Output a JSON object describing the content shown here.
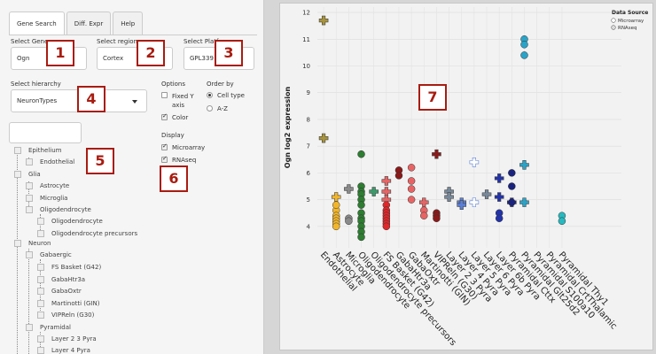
{
  "tabs": [
    "Gene Search",
    "Diff. Expr",
    "Help"
  ],
  "select_gene": {
    "label": "Select Gene",
    "value": "Ogn"
  },
  "select_region": {
    "label": "Select region",
    "value": "Cortex"
  },
  "select_platform": {
    "label": "Select Platform",
    "value": "GPL339"
  },
  "select_hierarchy": {
    "label": "Select hierarchy",
    "value": "NeuronTypes"
  },
  "options": {
    "heading": "Options",
    "fixed_y": "Fixed Y axis",
    "color": "Color"
  },
  "order_by": {
    "heading": "Order by",
    "cell_type": "Cell type",
    "az": "A-Z"
  },
  "display": {
    "heading": "Display",
    "microarray": "Microarray",
    "rnaseq": "RNAseq"
  },
  "tree": {
    "epithelium": "Epithelium",
    "endothelial": "Endothelial",
    "glia": "Glia",
    "astrocyte": "Astrocyte",
    "microglia": "Microglia",
    "oligodendrocyte_group": "Oligodendrocyte",
    "oligodendrocyte": "Oligodendrocyte",
    "oligo_precursors": "Oligodendrocyte precursors",
    "neuron": "Neuron",
    "gabaergic": "Gabaergic",
    "fs_basket": "FS Basket (G42)",
    "gabahtr3a": "GabaHtr3a",
    "gabaoxtr": "GabaOxtr",
    "martinotti": "Martinotti (GIN)",
    "viprein": "VIPReln (G30)",
    "pyramidal": "Pyramidal",
    "layer23": "Layer 2 3 Pyra",
    "layer4": "Layer 4 Pyra"
  },
  "badges": [
    "1",
    "2",
    "3",
    "4",
    "5",
    "6",
    "7"
  ],
  "legend": {
    "title": "Data Source",
    "microarray": "Microarray",
    "rnaseq": "RNAseq"
  },
  "colors": {
    "endothelial": "#a8943c",
    "astrocyte": "#f2b52a",
    "microglia": "#8a8a8a",
    "oligo": "#2e7d32",
    "opc": "#3a9a6a",
    "gaba": "#e0272a",
    "htr3a": "#8a1a1a",
    "pink": "#e86464",
    "dark_red": "#8b1a1a",
    "gray_blue": "#778899",
    "blue": "#5b7fd6",
    "dark_blue": "#2233aa",
    "navy": "#1a237e",
    "cyan": "#29a3c8",
    "teal": "#26b9c0"
  },
  "chart_data": {
    "type": "scatter",
    "ylabel": "Ogn log2 expression",
    "yticks": [
      4,
      5,
      6,
      7,
      8,
      9,
      10,
      11,
      12
    ],
    "ylim": [
      3.2,
      12.2
    ],
    "categories": [
      "Endothelial",
      "Astrocyte",
      "Microglia",
      "Oligodendrocyte",
      "Oligodendrocyte precursors",
      "FS Basket (G42)",
      "GabaHtr3a",
      "GabaOxtr",
      "Martinotti (GIN)",
      "VIPReln (G30)",
      "Layer 2 3 Pyra",
      "Layer 4 Pyra",
      "Layer 5 Pyra",
      "Layer 6 Pyra",
      "Layer 6b Pyra",
      "Pyramidal Cttx",
      "Pyramidal Glt25d2",
      "Pyramidal S100a10",
      "Pyramidal CrtThalamic",
      "Pyramidal Thy1"
    ],
    "series": [
      {
        "category": "Endothelial",
        "source": "rnaseq",
        "color": "#a8943c",
        "values": [
          11.7,
          7.3
        ]
      },
      {
        "category": "Astrocyte",
        "source": "rnaseq",
        "color": "#f2b52a",
        "values": [
          5.1
        ]
      },
      {
        "category": "Astrocyte",
        "source": "microarray",
        "color": "#f2b52a",
        "values": [
          4.6,
          4.4,
          4.3,
          4.2,
          4.1,
          4.0,
          4.8
        ]
      },
      {
        "category": "Microglia",
        "source": "rnaseq",
        "color": "#8a8a8a",
        "values": [
          5.4
        ]
      },
      {
        "category": "Microglia",
        "source": "microarray",
        "color": "#8a8a8a",
        "values": [
          4.3,
          4.2
        ]
      },
      {
        "category": "Oligodendrocyte",
        "source": "microarray",
        "color": "#2e7d32",
        "values": [
          6.7,
          5.5,
          5.3,
          5.2,
          5.0,
          4.8,
          4.5,
          4.3,
          4.2,
          4.0,
          3.8,
          3.6
        ]
      },
      {
        "category": "Oligodendrocyte precursors",
        "source": "rnaseq",
        "color": "#3a9a6a",
        "values": [
          5.3
        ]
      },
      {
        "category": "FS Basket (G42)",
        "source": "rnaseq",
        "color": "#e86464",
        "values": [
          5.7,
          5.3,
          5.0
        ]
      },
      {
        "category": "FS Basket (G42)",
        "source": "microarray",
        "color": "#e0272a",
        "values": [
          4.8,
          4.6,
          4.5,
          4.4,
          4.3,
          4.2,
          4.1,
          4.0
        ]
      },
      {
        "category": "GabaHtr3a",
        "source": "microarray",
        "color": "#8a1a1a",
        "values": [
          6.1,
          5.9
        ]
      },
      {
        "category": "GabaOxtr",
        "source": "microarray",
        "color": "#e86464",
        "values": [
          6.2,
          5.7,
          5.4,
          5.0
        ]
      },
      {
        "category": "Martinotti (GIN)",
        "source": "rnaseq",
        "color": "#e86464",
        "values": [
          4.9
        ]
      },
      {
        "category": "Martinotti (GIN)",
        "source": "microarray",
        "color": "#e86464",
        "values": [
          4.6,
          4.4
        ]
      },
      {
        "category": "VIPReln (G30)",
        "source": "rnaseq",
        "color": "#8b1a1a",
        "values": [
          6.7
        ]
      },
      {
        "category": "VIPReln (G30)",
        "source": "microarray",
        "color": "#8b1a1a",
        "values": [
          4.5,
          4.4,
          4.3
        ]
      },
      {
        "category": "Layer 2 3 Pyra",
        "source": "rnaseq",
        "color": "#778899",
        "values": [
          5.3,
          5.1
        ]
      },
      {
        "category": "Layer 4 Pyra",
        "source": "rnaseq",
        "color": "#5b7fd6",
        "values": [
          4.9,
          4.8
        ]
      },
      {
        "category": "Layer 5 Pyra",
        "source": "rnaseq",
        "color": "#ffffff",
        "values": [
          6.4,
          4.9
        ]
      },
      {
        "category": "Layer 6 Pyra",
        "source": "rnaseq",
        "color": "#778899",
        "values": [
          5.2
        ]
      },
      {
        "category": "Layer 6b Pyra",
        "source": "rnaseq",
        "color": "#2233aa",
        "values": [
          5.8,
          5.1
        ]
      },
      {
        "category": "Layer 6b Pyra",
        "source": "microarray",
        "color": "#2233aa",
        "values": [
          4.5,
          4.3
        ]
      },
      {
        "category": "Pyramidal Cttx",
        "source": "rnaseq",
        "color": "#1a237e",
        "values": [
          4.9
        ]
      },
      {
        "category": "Pyramidal Cttx",
        "source": "microarray",
        "color": "#1a237e",
        "values": [
          6.0,
          5.5,
          4.9
        ]
      },
      {
        "category": "Pyramidal Glt25d2",
        "source": "rnaseq",
        "color": "#29a3c8",
        "values": [
          6.3,
          4.9
        ]
      },
      {
        "category": "Pyramidal Glt25d2",
        "source": "microarray",
        "color": "#29a3c8",
        "values": [
          11.0,
          10.8,
          10.4
        ]
      },
      {
        "category": "Pyramidal Thy1",
        "source": "microarray",
        "color": "#26b9c0",
        "values": [
          4.4,
          4.2
        ]
      }
    ]
  }
}
